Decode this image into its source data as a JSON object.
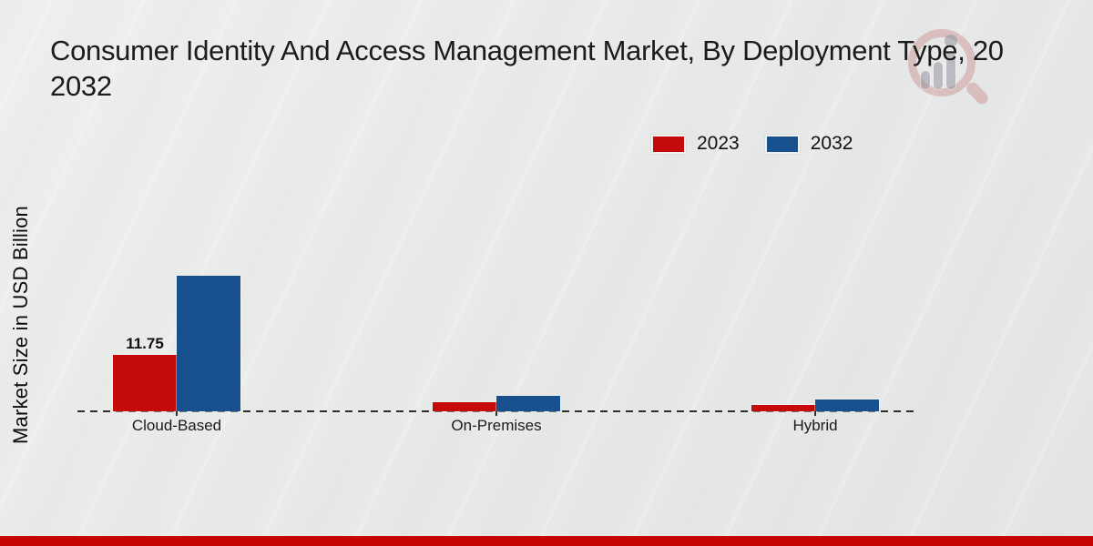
{
  "page": {
    "title_line1": "Consumer Identity And Access Management Market, By Deployment Type, 20",
    "title_line2": "2032"
  },
  "legend": {
    "items": [
      {
        "label": "2023",
        "color": "#c50a0a"
      },
      {
        "label": "2032",
        "color": "#17508c"
      }
    ]
  },
  "chart_data": {
    "type": "bar",
    "title": "Consumer Identity And Access Management Market, By Deployment Type, 2032",
    "ylabel": "Market Size in USD Billion",
    "xlabel": "",
    "categories": [
      "Cloud-Based",
      "On-Premises",
      "Hybrid"
    ],
    "series": [
      {
        "name": "2023",
        "color": "#c50a0a",
        "values": [
          11.75,
          1.9,
          1.4
        ],
        "value_labels": [
          "11.75",
          null,
          null
        ]
      },
      {
        "name": "2032",
        "color": "#17508c",
        "values": [
          28.0,
          3.2,
          2.5
        ],
        "value_labels": [
          null,
          null,
          null
        ]
      }
    ],
    "ylim": [
      0,
      30
    ],
    "grid": false,
    "baseline_style": "dashed",
    "legend_position": "upper-right"
  },
  "watermark": {
    "name": "market-research-magnifier-logo"
  },
  "footer": {
    "color": "#c60404"
  }
}
